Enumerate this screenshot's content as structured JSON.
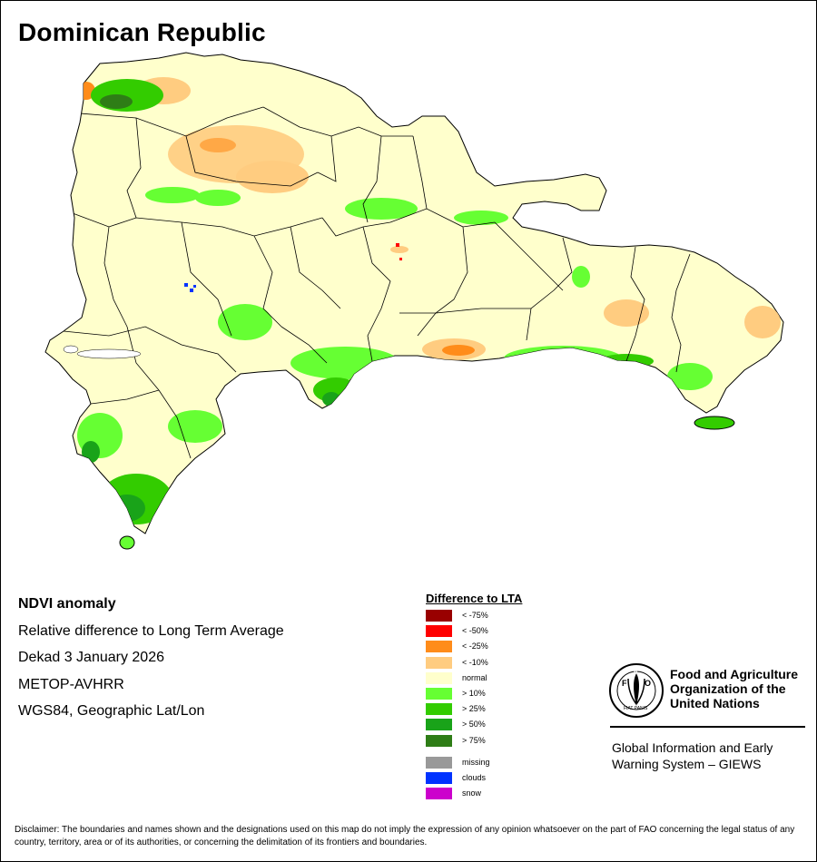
{
  "title": "Dominican Republic",
  "info": {
    "line1": "NDVI anomaly",
    "line2": "Relative difference to Long Term Average",
    "line3": "Dekad 3 January 2026",
    "line4": "METOP-AVHRR",
    "line5": "WGS84, Geographic Lat/Lon"
  },
  "legend": {
    "title": "Difference to LTA",
    "items": [
      {
        "label": "< -75%",
        "color": "#990000"
      },
      {
        "label": "< -50%",
        "color": "#ff0000"
      },
      {
        "label": "< -25%",
        "color": "#ff8c1a"
      },
      {
        "label": "< -10%",
        "color": "#ffcc80"
      },
      {
        "label": "normal",
        "color": "#ffffcc"
      },
      {
        "label": "> 10%",
        "color": "#66ff33"
      },
      {
        "label": "> 25%",
        "color": "#33cc00"
      },
      {
        "label": "> 50%",
        "color": "#19a319"
      },
      {
        "label": "> 75%",
        "color": "#2e7d16"
      }
    ],
    "extra": [
      {
        "label": "missing",
        "color": "#999999"
      },
      {
        "label": "clouds",
        "color": "#0033ff"
      },
      {
        "label": "snow",
        "color": "#cc00cc"
      }
    ]
  },
  "logo": {
    "name": "Food and Agriculture Organization of the United Nations",
    "acronym": "FAO",
    "motto": "FIAT PANIS"
  },
  "giews": "Global Information and Early Warning System – GIEWS",
  "disclaimer": "Disclaimer: The boundaries and names shown and the designations used on this map do not imply the expression of any opinion whatsoever on the part of FAO concerning the legal status of any country, territory, area or of its authorities, or concerning the delimitation of its frontiers and boundaries."
}
